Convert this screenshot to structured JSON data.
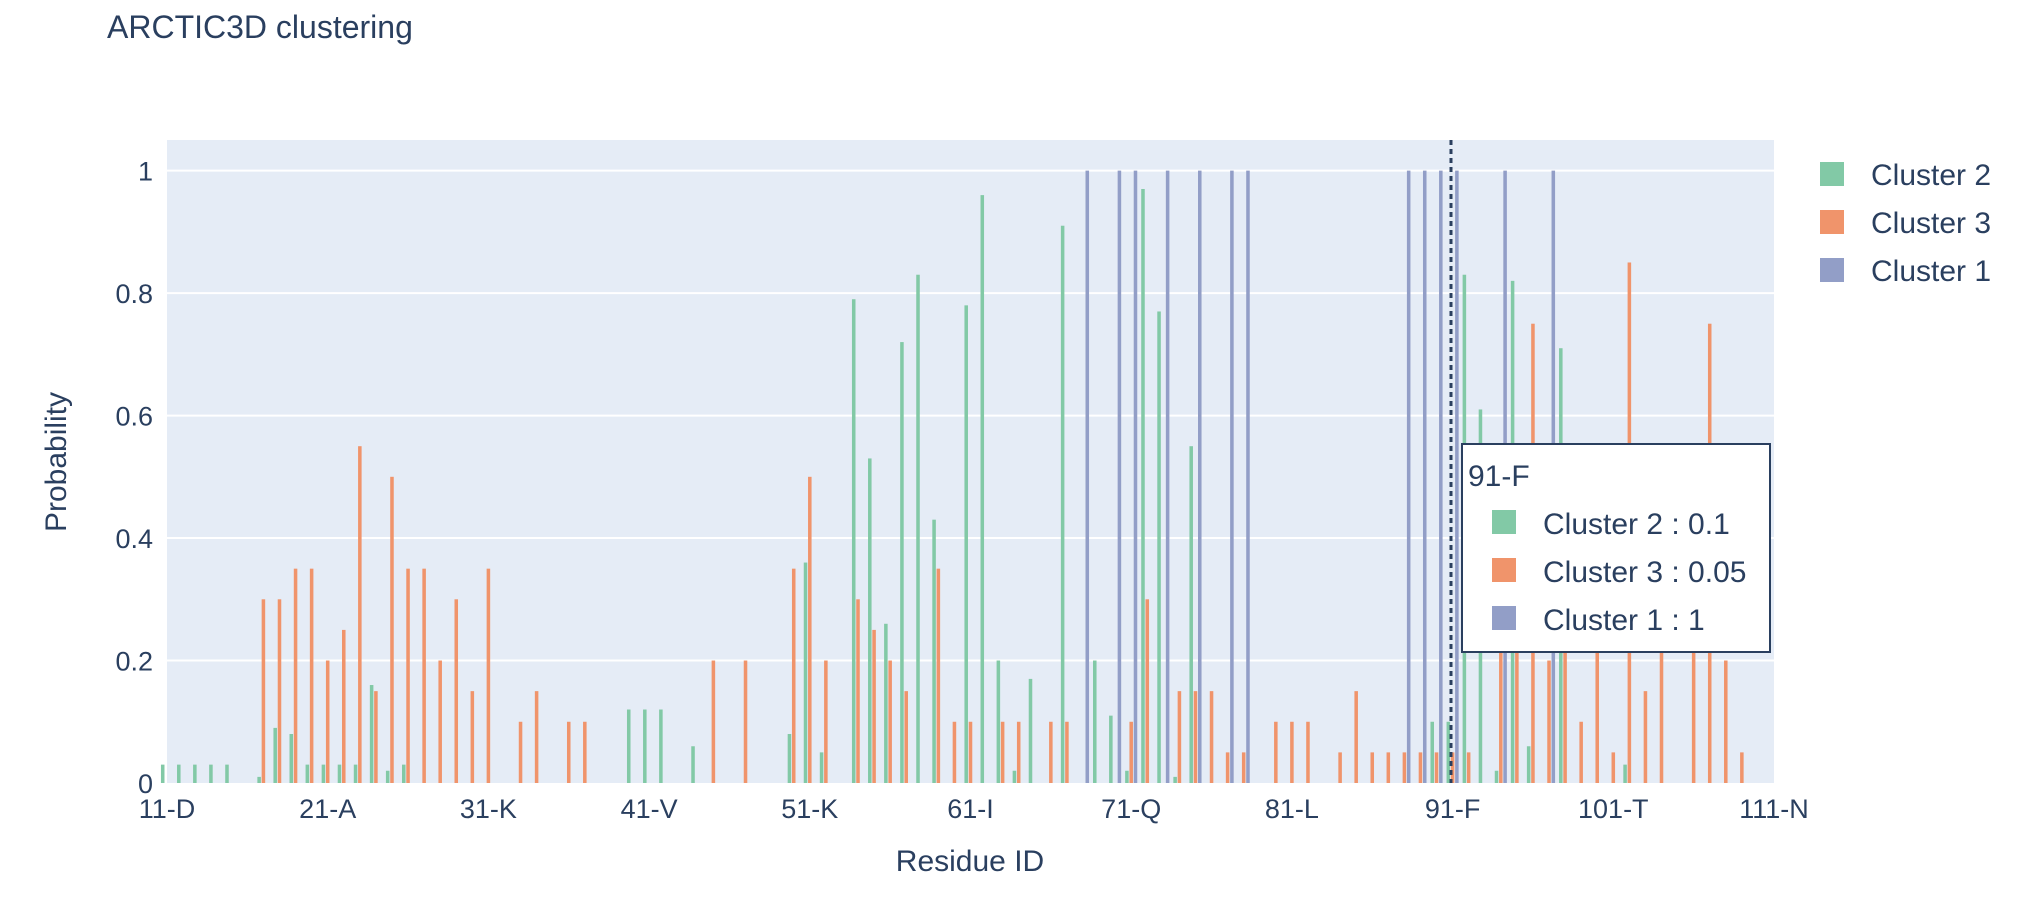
{
  "chart_data": {
    "type": "bar",
    "title": "ARCTIC3D clustering",
    "xlabel": "Residue ID",
    "ylabel": "Probability",
    "ylim": [
      0,
      1.05
    ],
    "x_range": [
      11,
      111
    ],
    "xtick_labels": [
      "11-D",
      "21-A",
      "31-K",
      "41-V",
      "51-K",
      "61-I",
      "71-Q",
      "81-L",
      "91-F",
      "101-T",
      "111-N"
    ],
    "ytick_labels": [
      "0",
      "0.2",
      "0.4",
      "0.6",
      "0.8",
      "1"
    ],
    "grid": true,
    "legend_position": "top-right",
    "series": [
      {
        "name": "Cluster 2",
        "color": "#82c9a6",
        "points": [
          [
            11,
            0.03
          ],
          [
            12,
            0.03
          ],
          [
            13,
            0.03
          ],
          [
            14,
            0.03
          ],
          [
            15,
            0.03
          ],
          [
            17,
            0.01
          ],
          [
            18,
            0.09
          ],
          [
            19,
            0.08
          ],
          [
            20,
            0.03
          ],
          [
            21,
            0.03
          ],
          [
            22,
            0.03
          ],
          [
            23,
            0.03
          ],
          [
            24,
            0.16
          ],
          [
            25,
            0.02
          ],
          [
            26,
            0.03
          ],
          [
            40,
            0.12
          ],
          [
            41,
            0.12
          ],
          [
            42,
            0.12
          ],
          [
            44,
            0.06
          ],
          [
            50,
            0.08
          ],
          [
            51,
            0.36
          ],
          [
            52,
            0.05
          ],
          [
            54,
            0.79
          ],
          [
            55,
            0.53
          ],
          [
            56,
            0.26
          ],
          [
            57,
            0.72
          ],
          [
            58,
            0.83
          ],
          [
            59,
            0.43
          ],
          [
            61,
            0.78
          ],
          [
            62,
            0.96
          ],
          [
            63,
            0.2
          ],
          [
            64,
            0.02
          ],
          [
            65,
            0.17
          ],
          [
            67,
            0.91
          ],
          [
            69,
            0.2
          ],
          [
            70,
            0.11
          ],
          [
            71,
            0.02
          ],
          [
            72,
            0.97
          ],
          [
            73,
            0.77
          ],
          [
            74,
            0.01
          ],
          [
            75,
            0.55
          ],
          [
            90,
            0.1
          ],
          [
            91,
            0.1
          ],
          [
            92,
            0.83
          ],
          [
            93,
            0.61
          ],
          [
            94,
            0.02
          ],
          [
            95,
            0.82
          ],
          [
            96,
            0.06
          ],
          [
            98,
            0.71
          ],
          [
            102,
            0.03
          ]
        ]
      },
      {
        "name": "Cluster 3",
        "color": "#f0946b",
        "points": [
          [
            17,
            0.3
          ],
          [
            18,
            0.3
          ],
          [
            19,
            0.35
          ],
          [
            20,
            0.35
          ],
          [
            21,
            0.2
          ],
          [
            22,
            0.25
          ],
          [
            23,
            0.55
          ],
          [
            24,
            0.15
          ],
          [
            25,
            0.5
          ],
          [
            26,
            0.35
          ],
          [
            27,
            0.35
          ],
          [
            28,
            0.2
          ],
          [
            29,
            0.3
          ],
          [
            30,
            0.15
          ],
          [
            31,
            0.35
          ],
          [
            33,
            0.1
          ],
          [
            34,
            0.15
          ],
          [
            36,
            0.1
          ],
          [
            37,
            0.1
          ],
          [
            45,
            0.2
          ],
          [
            47,
            0.2
          ],
          [
            50,
            0.35
          ],
          [
            51,
            0.5
          ],
          [
            52,
            0.2
          ],
          [
            54,
            0.3
          ],
          [
            55,
            0.25
          ],
          [
            56,
            0.2
          ],
          [
            57,
            0.15
          ],
          [
            59,
            0.35
          ],
          [
            60,
            0.1
          ],
          [
            61,
            0.1
          ],
          [
            63,
            0.1
          ],
          [
            64,
            0.1
          ],
          [
            66,
            0.1
          ],
          [
            67,
            0.1
          ],
          [
            71,
            0.1
          ],
          [
            72,
            0.3
          ],
          [
            74,
            0.15
          ],
          [
            75,
            0.15
          ],
          [
            76,
            0.15
          ],
          [
            77,
            0.05
          ],
          [
            78,
            0.05
          ],
          [
            80,
            0.1
          ],
          [
            81,
            0.1
          ],
          [
            82,
            0.1
          ],
          [
            84,
            0.05
          ],
          [
            85,
            0.15
          ],
          [
            86,
            0.05
          ],
          [
            87,
            0.05
          ],
          [
            88,
            0.05
          ],
          [
            89,
            0.05
          ],
          [
            90,
            0.05
          ],
          [
            91,
            0.05
          ],
          [
            92,
            0.05
          ],
          [
            94,
            0.3
          ],
          [
            95,
            0.3
          ],
          [
            96,
            0.75
          ],
          [
            97,
            0.2
          ],
          [
            98,
            0.3
          ],
          [
            99,
            0.1
          ],
          [
            100,
            0.25
          ],
          [
            101,
            0.05
          ],
          [
            102,
            0.85
          ],
          [
            103,
            0.15
          ],
          [
            104,
            0.25
          ],
          [
            106,
            0.25
          ],
          [
            107,
            0.75
          ],
          [
            108,
            0.2
          ],
          [
            109,
            0.05
          ]
        ]
      },
      {
        "name": "Cluster 1",
        "color": "#929ec7",
        "points": [
          [
            68,
            1
          ],
          [
            70,
            1
          ],
          [
            71,
            1
          ],
          [
            73,
            1
          ],
          [
            75,
            1
          ],
          [
            77,
            1
          ],
          [
            78,
            1
          ],
          [
            88,
            1
          ],
          [
            89,
            1
          ],
          [
            90,
            1
          ],
          [
            91,
            1
          ],
          [
            94,
            1
          ],
          [
            97,
            1
          ]
        ]
      }
    ],
    "hover_marker_x": 91,
    "hover": {
      "title": "91-F",
      "items": [
        {
          "label": "Cluster 2 : 0.1",
          "color": "#82c9a6"
        },
        {
          "label": "Cluster 3 : 0.05",
          "color": "#f0946b"
        },
        {
          "label": "Cluster 1 : 1",
          "color": "#929ec7"
        }
      ]
    }
  }
}
